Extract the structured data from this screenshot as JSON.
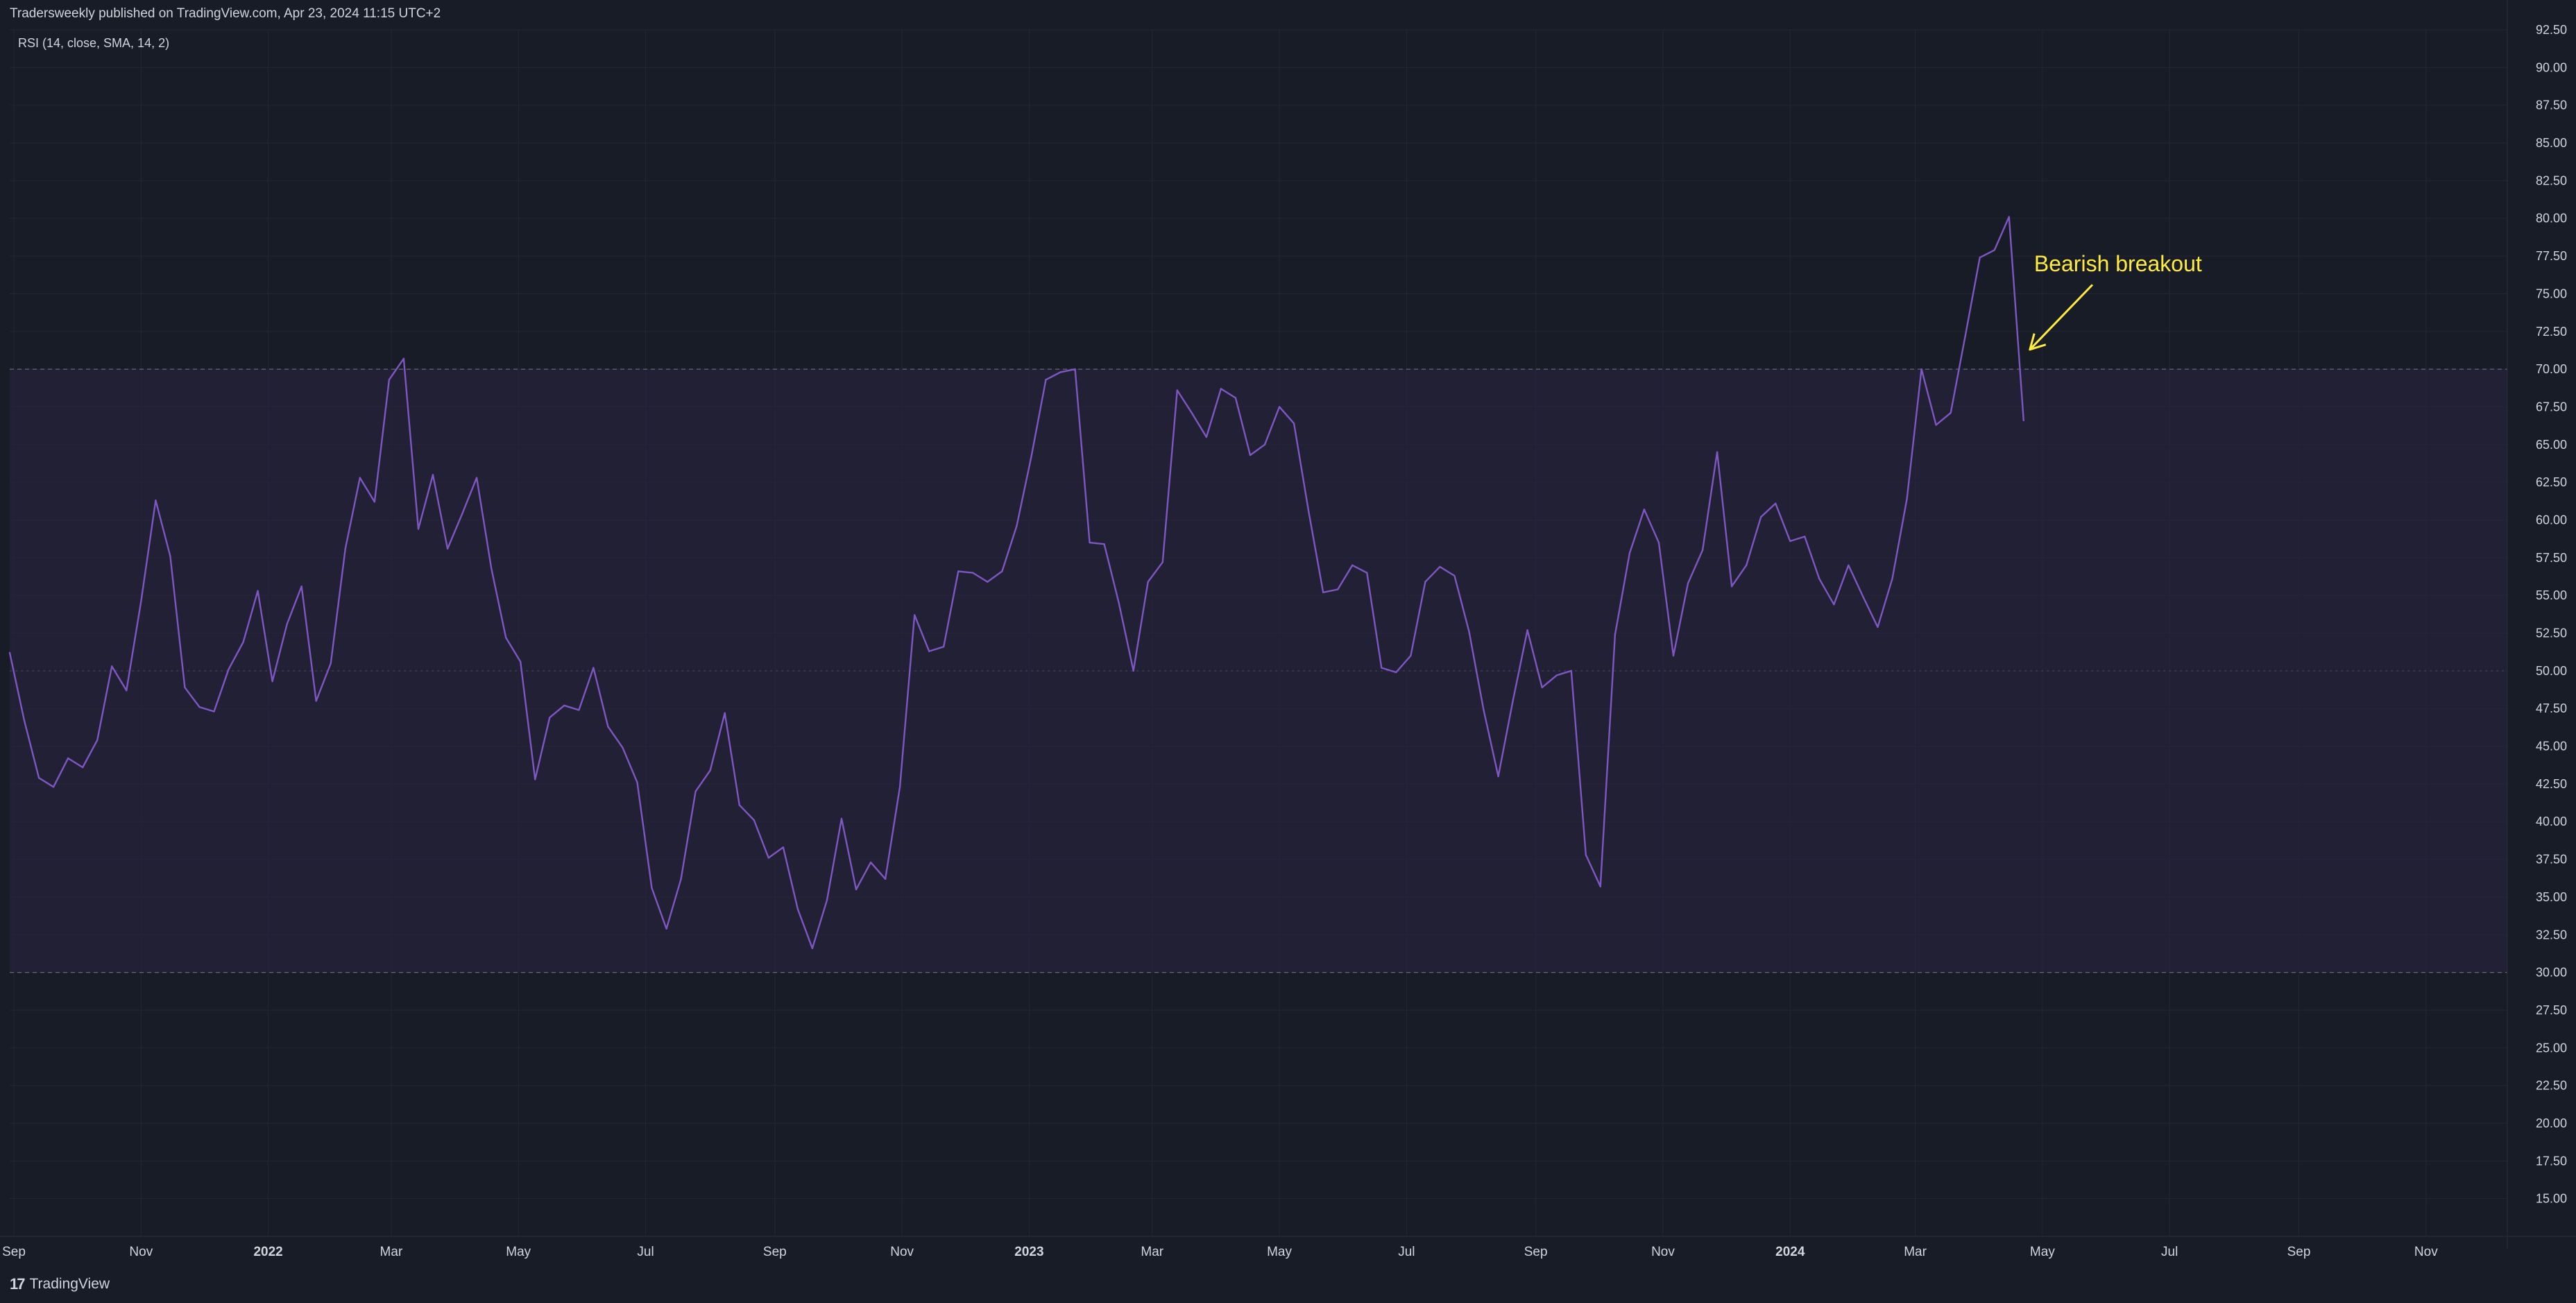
{
  "header": {
    "published": "Tradersweekly published on TradingView.com, Apr 23, 2024 11:15 UTC+2"
  },
  "footer": {
    "brand": "TradingView",
    "logo_icon": "tradingview-logo-icon"
  },
  "colors": {
    "background": "#181c27",
    "band_fill": "#2a2340",
    "line": "#7e57c2",
    "annotation": "#ffeb3b",
    "axis_text": "#d1d4dc",
    "grid": "#232734"
  },
  "chart_data": {
    "type": "line",
    "indicator_label": "RSI (14, close, SMA, 14, 2)",
    "ylim": [
      12.5,
      92.5
    ],
    "y_ticks": [
      "15.00",
      "17.50",
      "20.00",
      "22.50",
      "25.00",
      "27.50",
      "30.00",
      "32.50",
      "35.00",
      "37.50",
      "40.00",
      "42.50",
      "45.00",
      "47.50",
      "50.00",
      "52.50",
      "55.00",
      "57.50",
      "60.00",
      "62.50",
      "65.00",
      "67.50",
      "70.00",
      "72.50",
      "75.00",
      "77.50",
      "80.00",
      "82.50",
      "85.00",
      "87.50",
      "90.00",
      "92.50"
    ],
    "x_range": [
      "2021-08-30",
      "2024-12-10"
    ],
    "x_ticks": [
      {
        "label": "Sep",
        "date": "2021-09-01"
      },
      {
        "label": "Nov",
        "date": "2021-11-01"
      },
      {
        "label": "2022",
        "date": "2022-01-01"
      },
      {
        "label": "Mar",
        "date": "2022-03-01"
      },
      {
        "label": "May",
        "date": "2022-05-01"
      },
      {
        "label": "Jul",
        "date": "2022-07-01"
      },
      {
        "label": "Sep",
        "date": "2022-09-01"
      },
      {
        "label": "Nov",
        "date": "2022-11-01"
      },
      {
        "label": "2023",
        "date": "2023-01-01"
      },
      {
        "label": "Mar",
        "date": "2023-03-01"
      },
      {
        "label": "May",
        "date": "2023-05-01"
      },
      {
        "label": "Jul",
        "date": "2023-07-01"
      },
      {
        "label": "Sep",
        "date": "2023-09-01"
      },
      {
        "label": "Nov",
        "date": "2023-11-01"
      },
      {
        "label": "2024",
        "date": "2024-01-01"
      },
      {
        "label": "Mar",
        "date": "2024-03-01"
      },
      {
        "label": "May",
        "date": "2024-05-01"
      },
      {
        "label": "Jul",
        "date": "2024-07-01"
      },
      {
        "label": "Sep",
        "date": "2024-09-01"
      },
      {
        "label": "Nov",
        "date": "2024-11-01"
      }
    ],
    "bands": {
      "upper": 70,
      "middle": 50,
      "lower": 30
    },
    "series": [
      {
        "points": [
          [
            "2021-08-30",
            51.2
          ],
          [
            "2021-09-06",
            46.7
          ],
          [
            "2021-09-13",
            42.9
          ],
          [
            "2021-09-20",
            42.3
          ],
          [
            "2021-09-27",
            44.2
          ],
          [
            "2021-10-04",
            43.6
          ],
          [
            "2021-10-11",
            45.4
          ],
          [
            "2021-10-18",
            50.3
          ],
          [
            "2021-10-25",
            48.7
          ],
          [
            "2021-11-01",
            54.6
          ],
          [
            "2021-11-08",
            61.3
          ],
          [
            "2021-11-15",
            57.6
          ],
          [
            "2021-11-22",
            48.9
          ],
          [
            "2021-11-29",
            47.6
          ],
          [
            "2021-12-06",
            47.3
          ],
          [
            "2021-12-13",
            50.1
          ],
          [
            "2021-12-20",
            51.9
          ],
          [
            "2021-12-27",
            55.3
          ],
          [
            "2022-01-03",
            49.3
          ],
          [
            "2022-01-10",
            53.1
          ],
          [
            "2022-01-17",
            55.6
          ],
          [
            "2022-01-24",
            48.0
          ],
          [
            "2022-01-31",
            50.5
          ],
          [
            "2022-02-07",
            58.1
          ],
          [
            "2022-02-14",
            62.8
          ],
          [
            "2022-02-21",
            61.2
          ],
          [
            "2022-02-28",
            69.3
          ],
          [
            "2022-03-07",
            70.7
          ],
          [
            "2022-03-14",
            59.4
          ],
          [
            "2022-03-21",
            63.0
          ],
          [
            "2022-03-28",
            58.1
          ],
          [
            "2022-04-04",
            60.4
          ],
          [
            "2022-04-11",
            62.8
          ],
          [
            "2022-04-18",
            56.8
          ],
          [
            "2022-04-25",
            52.2
          ],
          [
            "2022-05-02",
            50.6
          ],
          [
            "2022-05-09",
            42.8
          ],
          [
            "2022-05-16",
            46.9
          ],
          [
            "2022-05-23",
            47.7
          ],
          [
            "2022-05-30",
            47.4
          ],
          [
            "2022-06-06",
            50.2
          ],
          [
            "2022-06-13",
            46.3
          ],
          [
            "2022-06-20",
            44.9
          ],
          [
            "2022-06-27",
            42.6
          ],
          [
            "2022-07-04",
            35.6
          ],
          [
            "2022-07-11",
            32.9
          ],
          [
            "2022-07-18",
            36.2
          ],
          [
            "2022-07-25",
            42.0
          ],
          [
            "2022-08-01",
            43.4
          ],
          [
            "2022-08-08",
            47.2
          ],
          [
            "2022-08-15",
            41.1
          ],
          [
            "2022-08-22",
            40.1
          ],
          [
            "2022-08-29",
            37.6
          ],
          [
            "2022-09-05",
            38.3
          ],
          [
            "2022-09-12",
            34.2
          ],
          [
            "2022-09-19",
            31.6
          ],
          [
            "2022-09-26",
            34.8
          ],
          [
            "2022-10-03",
            40.2
          ],
          [
            "2022-10-10",
            35.5
          ],
          [
            "2022-10-17",
            37.3
          ],
          [
            "2022-10-24",
            36.2
          ],
          [
            "2022-10-31",
            42.3
          ],
          [
            "2022-11-07",
            53.7
          ],
          [
            "2022-11-14",
            51.3
          ],
          [
            "2022-11-21",
            51.6
          ],
          [
            "2022-11-28",
            56.6
          ],
          [
            "2022-12-05",
            56.5
          ],
          [
            "2022-12-12",
            55.9
          ],
          [
            "2022-12-19",
            56.6
          ],
          [
            "2022-12-26",
            59.6
          ],
          [
            "2023-01-02",
            64.2
          ],
          [
            "2023-01-09",
            69.3
          ],
          [
            "2023-01-16",
            69.8
          ],
          [
            "2023-01-23",
            70.0
          ],
          [
            "2023-01-30",
            58.5
          ],
          [
            "2023-02-06",
            58.4
          ],
          [
            "2023-02-13",
            54.5
          ],
          [
            "2023-02-20",
            50.0
          ],
          [
            "2023-02-27",
            55.9
          ],
          [
            "2023-03-06",
            57.2
          ],
          [
            "2023-03-13",
            68.6
          ],
          [
            "2023-03-20",
            67.1
          ],
          [
            "2023-03-27",
            65.5
          ],
          [
            "2023-04-03",
            68.7
          ],
          [
            "2023-04-10",
            68.1
          ],
          [
            "2023-04-17",
            64.3
          ],
          [
            "2023-04-24",
            65.0
          ],
          [
            "2023-05-01",
            67.5
          ],
          [
            "2023-05-08",
            66.4
          ],
          [
            "2023-05-15",
            60.6
          ],
          [
            "2023-05-22",
            55.2
          ],
          [
            "2023-05-29",
            55.4
          ],
          [
            "2023-06-05",
            57.0
          ],
          [
            "2023-06-12",
            56.5
          ],
          [
            "2023-06-19",
            50.2
          ],
          [
            "2023-06-26",
            49.9
          ],
          [
            "2023-07-03",
            51.0
          ],
          [
            "2023-07-10",
            55.9
          ],
          [
            "2023-07-17",
            56.9
          ],
          [
            "2023-07-24",
            56.3
          ],
          [
            "2023-07-31",
            52.6
          ],
          [
            "2023-08-07",
            47.4
          ],
          [
            "2023-08-14",
            43.0
          ],
          [
            "2023-08-21",
            48.0
          ],
          [
            "2023-08-28",
            52.7
          ],
          [
            "2023-09-04",
            48.9
          ],
          [
            "2023-09-11",
            49.7
          ],
          [
            "2023-09-18",
            50.0
          ],
          [
            "2023-09-25",
            37.8
          ],
          [
            "2023-10-02",
            35.7
          ],
          [
            "2023-10-09",
            52.4
          ],
          [
            "2023-10-16",
            57.8
          ],
          [
            "2023-10-23",
            60.7
          ],
          [
            "2023-10-30",
            58.5
          ],
          [
            "2023-11-06",
            51.0
          ],
          [
            "2023-11-13",
            55.8
          ],
          [
            "2023-11-20",
            58.0
          ],
          [
            "2023-11-27",
            64.5
          ],
          [
            "2023-12-04",
            55.6
          ],
          [
            "2023-12-11",
            57.0
          ],
          [
            "2023-12-18",
            60.2
          ],
          [
            "2023-12-25",
            61.1
          ],
          [
            "2024-01-01",
            58.6
          ],
          [
            "2024-01-08",
            58.9
          ],
          [
            "2024-01-15",
            56.1
          ],
          [
            "2024-01-22",
            54.4
          ],
          [
            "2024-01-29",
            57.0
          ],
          [
            "2024-02-05",
            54.9
          ],
          [
            "2024-02-12",
            52.9
          ],
          [
            "2024-02-19",
            56.1
          ],
          [
            "2024-02-26",
            61.4
          ],
          [
            "2024-03-04",
            70.0
          ],
          [
            "2024-03-11",
            66.3
          ],
          [
            "2024-03-18",
            67.1
          ],
          [
            "2024-03-25",
            72.2
          ],
          [
            "2024-04-01",
            77.4
          ],
          [
            "2024-04-08",
            77.9
          ],
          [
            "2024-04-15",
            80.1
          ],
          [
            "2024-04-22",
            66.6
          ]
        ]
      }
    ],
    "annotation": {
      "text": "Bearish breakout",
      "label_at": [
        "2024-04-27",
        76.5
      ],
      "arrow_from": [
        "2024-05-25",
        75.6
      ],
      "arrow_to": [
        "2024-04-25",
        71.3
      ]
    }
  }
}
